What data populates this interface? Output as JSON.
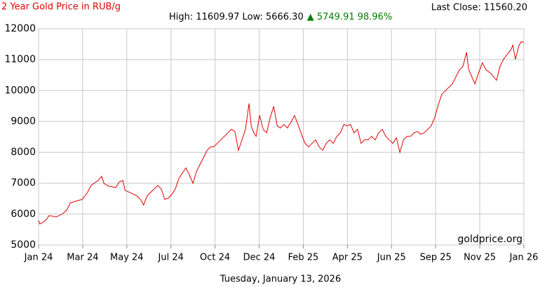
{
  "chart_data": {
    "type": "line",
    "title": "2 Year Gold Price in RUB/g",
    "last_close": "Last Close: 11560.20",
    "high_low": "High: 11609.97 Low: 5666.30",
    "change": "▲ 5749.91 98.96%",
    "watermark": "goldprice.org",
    "date": "Tuesday, January 13, 2026",
    "color": "#e00000",
    "grid": true,
    "xlim": [
      0,
      11
    ],
    "xticks": [
      {
        "value": 0,
        "label": "Jan 24"
      },
      {
        "value": 1,
        "label": "Mar 24"
      },
      {
        "value": 2,
        "label": "May 24"
      },
      {
        "value": 3,
        "label": "Jul 24"
      },
      {
        "value": 4,
        "label": "Oct 24"
      },
      {
        "value": 5,
        "label": "Dec 24"
      },
      {
        "value": 6,
        "label": "Feb 25"
      },
      {
        "value": 7,
        "label": "Apr 25"
      },
      {
        "value": 8,
        "label": "Jun 25"
      },
      {
        "value": 9,
        "label": "Sep 25"
      },
      {
        "value": 10,
        "label": "Nov 25"
      },
      {
        "value": 11,
        "label": "Jan 26"
      }
    ],
    "ylim": [
      5000,
      12000
    ],
    "yticks": [
      5000,
      6000,
      7000,
      8000,
      9000,
      10000,
      11000,
      12000
    ],
    "x": [
      0,
      0.03,
      0.16,
      0.24,
      0.4,
      0.56,
      0.64,
      0.72,
      0.87,
      0.99,
      1.11,
      1.19,
      1.35,
      1.43,
      1.48,
      1.59,
      1.75,
      1.83,
      1.91,
      1.96,
      2.07,
      2.23,
      2.31,
      2.38,
      2.46,
      2.54,
      2.7,
      2.78,
      2.86,
      2.94,
      3.02,
      3.1,
      3.18,
      3.23,
      3.34,
      3.42,
      3.5,
      3.58,
      3.66,
      3.74,
      3.82,
      3.9,
      3.97,
      4.05,
      4.13,
      4.21,
      4.29,
      4.37,
      4.45,
      4.53,
      4.61,
      4.69,
      4.77,
      4.82,
      4.88,
      4.93,
      5.01,
      5.09,
      5.17,
      5.25,
      5.33,
      5.41,
      5.48,
      5.56,
      5.64,
      5.72,
      5.8,
      5.88,
      5.96,
      6.04,
      6.12,
      6.2,
      6.28,
      6.36,
      6.44,
      6.52,
      6.6,
      6.68,
      6.76,
      6.84,
      6.92,
      7.0,
      7.07,
      7.15,
      7.23,
      7.31,
      7.39,
      7.47,
      7.55,
      7.63,
      7.71,
      7.79,
      7.87,
      7.95,
      8.03,
      8.11,
      8.19,
      8.27,
      8.35,
      8.43,
      8.51,
      8.59,
      8.66,
      8.74,
      8.82,
      8.9,
      8.98,
      9.06,
      9.14,
      9.22,
      9.3,
      9.38,
      9.46,
      9.54,
      9.62,
      9.7,
      9.75,
      9.82,
      9.89,
      9.97,
      10.06,
      10.14,
      10.25,
      10.38,
      10.46,
      10.54,
      10.6,
      10.7,
      10.75,
      10.81,
      10.89,
      10.94,
      11
    ],
    "values": [
      5794,
      5680,
      5794,
      5953,
      5907,
      6021,
      6134,
      6361,
      6429,
      6474,
      6701,
      6928,
      7087,
      7223,
      6996,
      6905,
      6860,
      7041,
      7087,
      6769,
      6701,
      6588,
      6474,
      6293,
      6588,
      6701,
      6928,
      6814,
      6474,
      6520,
      6633,
      6814,
      7155,
      7268,
      7495,
      7268,
      6996,
      7381,
      7608,
      7835,
      8062,
      8175,
      8175,
      8289,
      8402,
      8515,
      8629,
      8742,
      8674,
      8062,
      8402,
      8742,
      9581,
      8856,
      8629,
      8515,
      9196,
      8742,
      8629,
      9128,
      9491,
      8856,
      8788,
      8901,
      8788,
      8969,
      9196,
      8901,
      8583,
      8289,
      8175,
      8289,
      8402,
      8175,
      8062,
      8289,
      8402,
      8289,
      8515,
      8629,
      8901,
      8856,
      8901,
      8629,
      8742,
      8289,
      8402,
      8402,
      8515,
      8402,
      8629,
      8742,
      8515,
      8402,
      8289,
      8470,
      7994,
      8402,
      8515,
      8515,
      8629,
      8674,
      8583,
      8629,
      8742,
      8856,
      9128,
      9536,
      9876,
      9990,
      10103,
      10216,
      10443,
      10670,
      10783,
      11237,
      10670,
      10443,
      10216,
      10557,
      10897,
      10670,
      10557,
      10330,
      10783,
      11010,
      11124,
      11305,
      11464,
      11010,
      11464,
      11577,
      11560
    ]
  }
}
